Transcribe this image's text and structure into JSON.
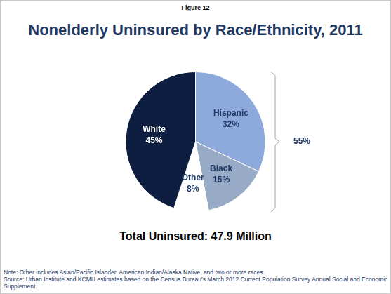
{
  "chart_data": {
    "type": "pie",
    "figure_label": "Figure 12",
    "title": "Nonelderly Uninsured by Race/Ethnicity, 2011",
    "categories": [
      "Hispanic",
      "Black",
      "Other",
      "White"
    ],
    "values": [
      32,
      15,
      8,
      45
    ],
    "value_labels": [
      "32%",
      "15%",
      "8%",
      "45%"
    ],
    "colors": [
      "#8eaadc",
      "#97abc6",
      "#ffffff",
      "#0d1e40"
    ],
    "data_labels": true,
    "annotations": [
      {
        "value": 55,
        "label": "55%"
      }
    ],
    "footer": "Total Uninsured: 47.9 Million",
    "notes": [
      "Note: Other includes Asian/Pacific Islander, American Indian/Alaska Native, and two or more races.",
      "Source: Urban Institute and KCMU estimates based on the Census Bureau's March 2012 Current Population Survey  Annual Social and Economic Supplement."
    ]
  }
}
